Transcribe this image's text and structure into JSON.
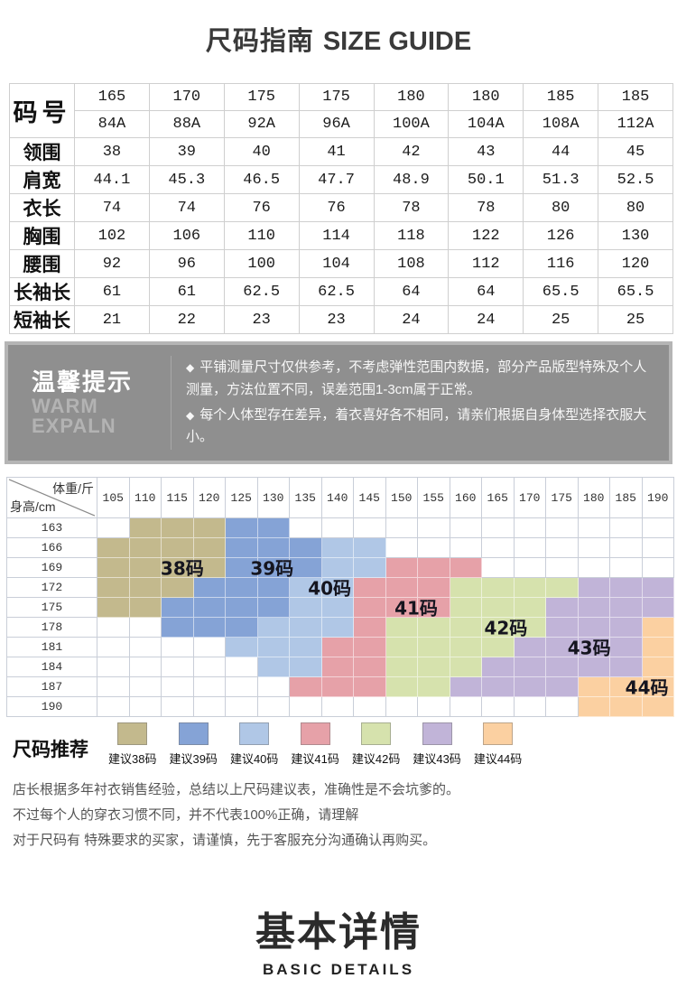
{
  "title": {
    "zh": "尺码指南",
    "en": "SIZE GUIDE"
  },
  "size_table": {
    "corner_label": "码号",
    "sizes": [
      "165",
      "170",
      "175",
      "175",
      "180",
      "180",
      "185",
      "185"
    ],
    "fits": [
      "84A",
      "88A",
      "92A",
      "96A",
      "100A",
      "104A",
      "108A",
      "112A"
    ],
    "rows": [
      {
        "label": "领围",
        "values": [
          "38",
          "39",
          "40",
          "41",
          "42",
          "43",
          "44",
          "45"
        ]
      },
      {
        "label": "肩宽",
        "values": [
          "44.1",
          "45.3",
          "46.5",
          "47.7",
          "48.9",
          "50.1",
          "51.3",
          "52.5"
        ]
      },
      {
        "label": "衣长",
        "values": [
          "74",
          "74",
          "76",
          "76",
          "78",
          "78",
          "80",
          "80"
        ]
      },
      {
        "label": "胸围",
        "values": [
          "102",
          "106",
          "110",
          "114",
          "118",
          "122",
          "126",
          "130"
        ]
      },
      {
        "label": "腰围",
        "values": [
          "92",
          "96",
          "100",
          "104",
          "108",
          "112",
          "116",
          "120"
        ]
      },
      {
        "label": "长袖长",
        "values": [
          "61",
          "61",
          "62.5",
          "62.5",
          "64",
          "64",
          "65.5",
          "65.5"
        ]
      },
      {
        "label": "短袖长",
        "values": [
          "21",
          "22",
          "23",
          "23",
          "24",
          "24",
          "25",
          "25"
        ]
      }
    ]
  },
  "warm_tips": {
    "title": "温馨提示",
    "subtitle_lines": [
      "WARM",
      "EXPALN"
    ],
    "bullets": [
      "平铺测量尺寸仅供参考，不考虑弹性范围内数据，部分产品版型特殊及个人测量，方法位置不同，误差范围1-3cm属于正常。",
      "每个人体型存在差异，着衣喜好各不相同，请亲们根据自身体型选择衣服大小。"
    ]
  },
  "chart_data": {
    "type": "heatmap",
    "x_axis_label": "体重/斤",
    "y_axis_label": "身高/cm",
    "weights": [
      "105",
      "110",
      "115",
      "120",
      "125",
      "130",
      "135",
      "140",
      "145",
      "150",
      "155",
      "160",
      "165",
      "170",
      "175",
      "180",
      "185",
      "190"
    ],
    "heights": [
      "163",
      "166",
      "169",
      "172",
      "175",
      "178",
      "181",
      "184",
      "187",
      "190"
    ],
    "size_colors": {
      "38": "#c3b98d",
      "39": "#85a3d6",
      "40": "#b0c7e6",
      "41": "#e6a1a8",
      "42": "#d6e2ad",
      "43": "#c1b4d8",
      "44": "#fbd0a1"
    },
    "rows": [
      {
        "height": "163",
        "zones": [
          {
            "s": "38",
            "a": 1,
            "b": 3
          },
          {
            "s": "39",
            "a": 4,
            "b": 5
          }
        ]
      },
      {
        "height": "166",
        "zones": [
          {
            "s": "38",
            "a": 0,
            "b": 3
          },
          {
            "s": "39",
            "a": 4,
            "b": 6
          },
          {
            "s": "40",
            "a": 7,
            "b": 8
          }
        ]
      },
      {
        "height": "169",
        "zones": [
          {
            "s": "38",
            "a": 0,
            "b": 3
          },
          {
            "s": "39",
            "a": 4,
            "b": 6
          },
          {
            "s": "40",
            "a": 7,
            "b": 8
          },
          {
            "s": "41",
            "a": 9,
            "b": 11
          }
        ]
      },
      {
        "height": "172",
        "zones": [
          {
            "s": "38",
            "a": 0,
            "b": 2
          },
          {
            "s": "39",
            "a": 3,
            "b": 5
          },
          {
            "s": "40",
            "a": 6,
            "b": 7
          },
          {
            "s": "41",
            "a": 8,
            "b": 10
          },
          {
            "s": "42",
            "a": 11,
            "b": 14
          },
          {
            "s": "43",
            "a": 15,
            "b": 17
          }
        ]
      },
      {
        "height": "175",
        "zones": [
          {
            "s": "38",
            "a": 0,
            "b": 1
          },
          {
            "s": "39",
            "a": 2,
            "b": 5
          },
          {
            "s": "40",
            "a": 6,
            "b": 7
          },
          {
            "s": "41",
            "a": 8,
            "b": 10
          },
          {
            "s": "42",
            "a": 11,
            "b": 13
          },
          {
            "s": "43",
            "a": 14,
            "b": 17
          }
        ]
      },
      {
        "height": "178",
        "zones": [
          {
            "s": "39",
            "a": 2,
            "b": 4
          },
          {
            "s": "40",
            "a": 5,
            "b": 7
          },
          {
            "s": "41",
            "a": 8,
            "b": 8
          },
          {
            "s": "42",
            "a": 9,
            "b": 13
          },
          {
            "s": "43",
            "a": 14,
            "b": 16
          },
          {
            "s": "44",
            "a": 17,
            "b": 17
          }
        ]
      },
      {
        "height": "181",
        "zones": [
          {
            "s": "40",
            "a": 4,
            "b": 6
          },
          {
            "s": "41",
            "a": 7,
            "b": 8
          },
          {
            "s": "42",
            "a": 9,
            "b": 12
          },
          {
            "s": "43",
            "a": 13,
            "b": 16
          },
          {
            "s": "44",
            "a": 17,
            "b": 17
          }
        ]
      },
      {
        "height": "184",
        "zones": [
          {
            "s": "40",
            "a": 5,
            "b": 6
          },
          {
            "s": "41",
            "a": 7,
            "b": 8
          },
          {
            "s": "42",
            "a": 9,
            "b": 11
          },
          {
            "s": "43",
            "a": 12,
            "b": 16
          },
          {
            "s": "44",
            "a": 17,
            "b": 17
          }
        ]
      },
      {
        "height": "187",
        "zones": [
          {
            "s": "41",
            "a": 6,
            "b": 8
          },
          {
            "s": "42",
            "a": 9,
            "b": 10
          },
          {
            "s": "43",
            "a": 11,
            "b": 14
          },
          {
            "s": "44",
            "a": 15,
            "b": 17
          }
        ]
      },
      {
        "height": "190",
        "zones": [
          {
            "s": "44",
            "a": 15,
            "b": 17
          }
        ]
      }
    ],
    "size_labels": [
      {
        "text": "38码",
        "row": 2,
        "col": 2.7
      },
      {
        "text": "39码",
        "row": 2,
        "col": 5.5
      },
      {
        "text": "40码",
        "row": 3,
        "col": 7.3
      },
      {
        "text": "41码",
        "row": 4,
        "col": 10.0
      },
      {
        "text": "42码",
        "row": 5,
        "col": 12.8
      },
      {
        "text": "43码",
        "row": 6,
        "col": 15.4
      },
      {
        "text": "44码",
        "row": 8,
        "col": 17.2
      }
    ]
  },
  "legend": {
    "title": "尺码推荐",
    "items": [
      {
        "label": "建议38码",
        "color": "#c3b98d"
      },
      {
        "label": "建议39码",
        "color": "#85a3d6"
      },
      {
        "label": "建议40码",
        "color": "#b0c7e6"
      },
      {
        "label": "建议41码",
        "color": "#e6a1a8"
      },
      {
        "label": "建议42码",
        "color": "#d6e2ad"
      },
      {
        "label": "建议43码",
        "color": "#c1b4d8"
      },
      {
        "label": "建议44码",
        "color": "#fbd0a1"
      }
    ]
  },
  "notes": [
    "店长根据多年衬衣销售经验，总结以上尺码建议表，准确性是不会坑爹的。",
    "不过每个人的穿衣习惯不同，并不代表100%正确，请理解",
    "对于尺码有 特殊要求的买家，请谨慎，先于客服充分沟通确认再购买。"
  ],
  "footer": {
    "title_zh": "基本详情",
    "title_en": "BASIC DETAILS"
  }
}
